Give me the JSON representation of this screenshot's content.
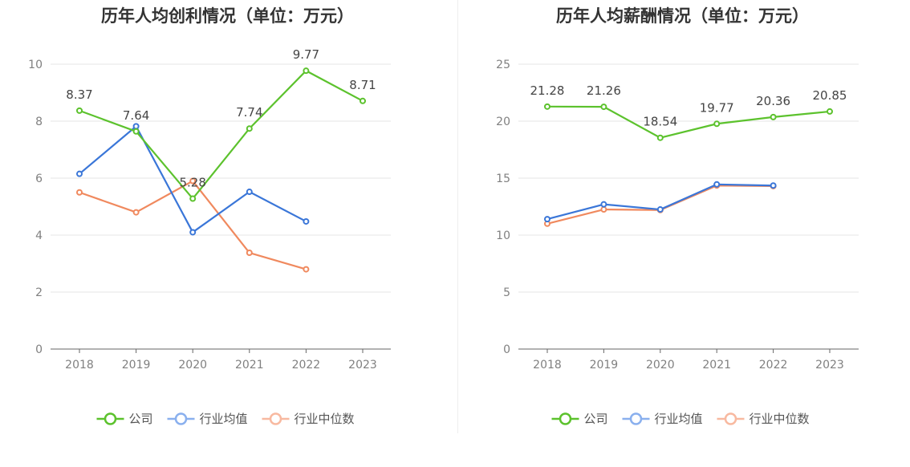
{
  "charts": [
    {
      "title": "历年人均创利情况（单位：万元）",
      "chart_data": {
        "type": "line",
        "title": "历年人均创利情况（单位：万元）",
        "categories": [
          "2018",
          "2019",
          "2020",
          "2021",
          "2022",
          "2023"
        ],
        "ylim": [
          0,
          10
        ],
        "yticks": [
          0,
          2,
          4,
          6,
          8,
          10
        ],
        "grid": true,
        "legend": "bottom",
        "series": [
          {
            "name": "公司",
            "color": "#5cc22d",
            "values": [
              8.37,
              7.64,
              5.28,
              7.74,
              9.77,
              8.71
            ],
            "labels": [
              "8.37",
              "7.64",
              "5.28",
              "7.74",
              "9.77",
              "8.71"
            ]
          },
          {
            "name": "行业均值",
            "color": "#3a76d8",
            "values": [
              6.15,
              7.82,
              4.1,
              5.52,
              4.48,
              null
            ]
          },
          {
            "name": "行业中位数",
            "color": "#f0895e",
            "values": [
              5.5,
              4.8,
              5.9,
              3.38,
              2.8,
              null
            ]
          }
        ]
      }
    },
    {
      "title": "历年人均薪酬情况（单位：万元）",
      "chart_data": {
        "type": "line",
        "title": "历年人均薪酬情况（单位：万元）",
        "categories": [
          "2018",
          "2019",
          "2020",
          "2021",
          "2022",
          "2023"
        ],
        "ylim": [
          0,
          25
        ],
        "yticks": [
          0,
          5,
          10,
          15,
          20,
          25
        ],
        "grid": true,
        "legend": "bottom",
        "series": [
          {
            "name": "公司",
            "color": "#5cc22d",
            "values": [
              21.28,
              21.26,
              18.54,
              19.77,
              20.36,
              20.85
            ],
            "labels": [
              "21.28",
              "21.26",
              "18.54",
              "19.77",
              "20.36",
              "20.85"
            ]
          },
          {
            "name": "行业均值",
            "color": "#3a76d8",
            "values": [
              11.4,
              12.7,
              12.25,
              14.45,
              14.35,
              null
            ]
          },
          {
            "name": "行业中位数",
            "color": "#f0895e",
            "values": [
              11.0,
              12.25,
              12.2,
              14.35,
              14.3,
              null
            ]
          }
        ]
      }
    }
  ],
  "legend_colors": [
    "#5cc22d",
    "#8ab0ee",
    "#f8b9a0"
  ]
}
